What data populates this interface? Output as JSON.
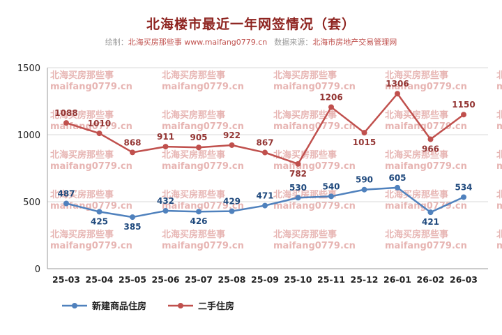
{
  "title": "北海楼市最近一年网签情况（套）",
  "subtitle": {
    "prefix": "绘制：",
    "author": "北海买房那些事 www.maifang0779.cn",
    "source_label": "数据来源：",
    "source": "北海市房地产交易管理网"
  },
  "watermark": {
    "line1": "北海买房那些事",
    "line2": "maifang0779.cn",
    "color": "rgba(201,91,86,0.45)"
  },
  "chart_data": {
    "type": "line",
    "categories": [
      "25-03",
      "25-04",
      "25-05",
      "25-06",
      "25-07",
      "25-08",
      "25-09",
      "25-10",
      "25-11",
      "25-12",
      "26-01",
      "26-02",
      "26-03"
    ],
    "series": [
      {
        "name": "新建商品住房",
        "color": "#4f81bd",
        "label_color": "#1f497d",
        "values": [
          487,
          425,
          385,
          432,
          426,
          429,
          471,
          530,
          540,
          590,
          605,
          421,
          534
        ],
        "label_pos": [
          "above",
          "below",
          "below",
          "above",
          "below",
          "above",
          "above",
          "above",
          "above",
          "above",
          "above",
          "below",
          "above"
        ]
      },
      {
        "name": "二手住房",
        "color": "#c0504d",
        "label_color": "#943634",
        "values": [
          1088,
          1010,
          868,
          911,
          905,
          922,
          867,
          782,
          1206,
          1015,
          1306,
          966,
          1150
        ],
        "label_pos": [
          "above",
          "above",
          "above",
          "above",
          "above",
          "above",
          "above",
          "below",
          "above",
          "below",
          "above",
          "below",
          "above"
        ]
      }
    ],
    "yticks": [
      0,
      500,
      1000,
      1500
    ],
    "ylim": [
      0,
      1500
    ],
    "grid": "horizontal",
    "legend_position": "bottom-left",
    "title": "北海楼市最近一年网签情况（套）",
    "xlabel": "",
    "ylabel": ""
  },
  "colors": {
    "title": "#8e2420",
    "grid": "#d9d9d9",
    "axis": "#9a9a9a",
    "tick_text": "#222222"
  }
}
